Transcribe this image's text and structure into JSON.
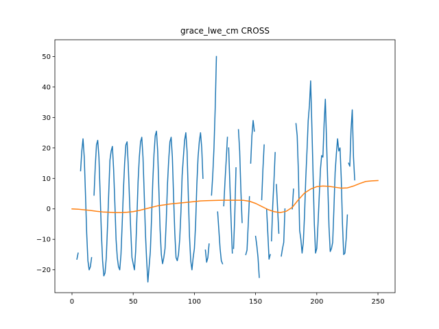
{
  "chart_data": {
    "type": "line",
    "title": "grace_lwe_cm CROSS",
    "xlabel": "",
    "ylabel": "",
    "xlim": [
      -14,
      264
    ],
    "ylim": [
      -27.5,
      55.5
    ],
    "xticks": [
      0,
      50,
      100,
      150,
      200,
      250
    ],
    "yticks": [
      -20,
      -10,
      0,
      10,
      20,
      30,
      40,
      50
    ],
    "grid": false,
    "legend": "none",
    "series": [
      {
        "color": "#1f77b4",
        "segments": [
          [
            [
              4,
              -16.5
            ],
            [
              5,
              -14.5
            ]
          ],
          [
            [
              7,
              12.5
            ],
            [
              8,
              19
            ],
            [
              9,
              23
            ],
            [
              10,
              17
            ],
            [
              11,
              5
            ],
            [
              12,
              -8
            ],
            [
              13,
              -17
            ],
            [
              14,
              -20
            ],
            [
              15,
              -19
            ],
            [
              16,
              -16
            ]
          ],
          [
            [
              18,
              4.5
            ],
            [
              19,
              14
            ],
            [
              20,
              21
            ],
            [
              21,
              22.5
            ],
            [
              22,
              17
            ],
            [
              23,
              5
            ],
            [
              24,
              -8
            ],
            [
              25,
              -17
            ],
            [
              26,
              -22
            ],
            [
              27,
              -21
            ],
            [
              28,
              -16
            ],
            [
              29,
              -6
            ],
            [
              30,
              5
            ],
            [
              31,
              16
            ],
            [
              32,
              19
            ],
            [
              33,
              20.5
            ],
            [
              34,
              13
            ],
            [
              35,
              2
            ],
            [
              36,
              -10
            ],
            [
              37,
              -16
            ],
            [
              38,
              -19
            ],
            [
              39,
              -20
            ],
            [
              40,
              -15
            ],
            [
              41,
              -5
            ],
            [
              42,
              6
            ],
            [
              43,
              15
            ],
            [
              44,
              21
            ],
            [
              45,
              22
            ],
            [
              46,
              14
            ],
            [
              47,
              3
            ],
            [
              48,
              -7
            ],
            [
              49,
              -16
            ],
            [
              50,
              -18
            ],
            [
              51,
              -20
            ],
            [
              52,
              -14
            ],
            [
              53,
              -3
            ],
            [
              54,
              9
            ],
            [
              55,
              17
            ],
            [
              56,
              22
            ],
            [
              57,
              23.5
            ],
            [
              58,
              17
            ],
            [
              59,
              5
            ],
            [
              60,
              -8
            ],
            [
              61,
              -17
            ],
            [
              62,
              -24
            ],
            [
              63,
              -19
            ],
            [
              64,
              -14
            ],
            [
              65,
              -3
            ],
            [
              66,
              9
            ],
            [
              67,
              18
            ],
            [
              68,
              24
            ],
            [
              69,
              25.5
            ],
            [
              70,
              19
            ],
            [
              71,
              6
            ],
            [
              72,
              -7
            ],
            [
              73,
              -15
            ],
            [
              74,
              -18
            ],
            [
              75,
              -16
            ],
            [
              76,
              -13
            ],
            [
              77,
              -4
            ],
            [
              78,
              8
            ],
            [
              79,
              16
            ],
            [
              80,
              22
            ],
            [
              81,
              23.5
            ],
            [
              82,
              17
            ],
            [
              83,
              4
            ],
            [
              84,
              -8
            ],
            [
              85,
              -16
            ],
            [
              86,
              -17
            ],
            [
              87,
              -15
            ],
            [
              88,
              -10
            ],
            [
              89,
              -1
            ],
            [
              90,
              11
            ],
            [
              91,
              17
            ],
            [
              92,
              22.5
            ],
            [
              93,
              25
            ],
            [
              94,
              19
            ],
            [
              95,
              5
            ],
            [
              96,
              -9
            ],
            [
              97,
              -17
            ],
            [
              98,
              -20
            ],
            [
              99,
              -16
            ],
            [
              100,
              -13
            ],
            [
              101,
              -5
            ],
            [
              102,
              8
            ],
            [
              103,
              17
            ],
            [
              104,
              22
            ],
            [
              105,
              25
            ],
            [
              106,
              20
            ],
            [
              107,
              10
            ]
          ],
          [
            [
              109,
              -13.5
            ],
            [
              110,
              -17.5
            ],
            [
              111,
              -16
            ],
            [
              112,
              -11.5
            ]
          ],
          [
            [
              114,
              4.5
            ],
            [
              115,
              11
            ],
            [
              116,
              20
            ],
            [
              117,
              33
            ],
            [
              118,
              50
            ]
          ],
          [
            [
              119,
              -1
            ],
            [
              120,
              -7
            ],
            [
              121,
              -13
            ],
            [
              122,
              -17
            ],
            [
              123,
              -18
            ]
          ],
          [
            [
              124,
              1
            ],
            [
              125,
              9
            ],
            [
              126,
              16
            ],
            [
              127,
              23.5
            ]
          ],
          [
            [
              128,
              20
            ],
            [
              129,
              8
            ],
            [
              130,
              -4
            ],
            [
              131,
              -14.5
            ]
          ],
          [
            [
              132,
              -13
            ],
            [
              133,
              -2
            ],
            [
              134,
              13.5
            ]
          ],
          [
            [
              136,
              26
            ],
            [
              137,
              19
            ],
            [
              138,
              6
            ],
            [
              139,
              -4.5
            ]
          ],
          [
            [
              142,
              -15
            ],
            [
              143,
              -13.5
            ],
            [
              144,
              -5
            ],
            [
              145,
              4
            ]
          ],
          [
            [
              146,
              15
            ],
            [
              147,
              24
            ],
            [
              148,
              29
            ],
            [
              149,
              25.5
            ]
          ],
          [
            [
              150,
              -9
            ],
            [
              151,
              -12
            ],
            [
              152,
              -16
            ],
            [
              153,
              -22.5
            ]
          ],
          [
            [
              155,
              3
            ],
            [
              156,
              13
            ],
            [
              157,
              21
            ]
          ],
          [
            [
              159,
              0
            ],
            [
              160,
              -8
            ],
            [
              161,
              -16.5
            ],
            [
              162,
              -15
            ]
          ],
          [
            [
              163,
              -10.5
            ],
            [
              164,
              1
            ],
            [
              165,
              9
            ],
            [
              166,
              18.5
            ]
          ],
          [
            [
              167,
              8
            ],
            [
              168,
              0
            ],
            [
              169,
              -8
            ]
          ],
          [
            [
              171,
              -15.5
            ],
            [
              172,
              -13
            ],
            [
              173,
              -11
            ],
            [
              174,
              0
            ]
          ],
          [
            [
              180,
              0
            ],
            [
              181,
              6.5
            ]
          ],
          [
            [
              183,
              28
            ],
            [
              184,
              24
            ],
            [
              185,
              12
            ],
            [
              186,
              -7
            ],
            [
              187,
              -10
            ],
            [
              188,
              -14.5
            ],
            [
              189,
              -11
            ],
            [
              190,
              -2
            ],
            [
              191,
              10
            ],
            [
              192,
              19
            ],
            [
              193,
              29
            ],
            [
              194,
              34
            ],
            [
              195,
              42
            ],
            [
              196,
              27
            ],
            [
              197,
              11
            ],
            [
              198,
              -5
            ],
            [
              199,
              -14.5
            ],
            [
              200,
              -13
            ],
            [
              201,
              -5
            ],
            [
              202,
              4
            ],
            [
              203,
              13
            ],
            [
              204,
              17.5
            ],
            [
              205,
              17
            ],
            [
              206,
              28
            ],
            [
              207,
              36
            ],
            [
              208,
              22
            ],
            [
              209,
              8
            ],
            [
              210,
              -6
            ],
            [
              211,
              -14
            ],
            [
              212,
              -13
            ],
            [
              213,
              -11
            ],
            [
              214,
              0
            ],
            [
              215,
              12
            ],
            [
              216,
              18
            ],
            [
              217,
              23
            ],
            [
              218,
              19
            ],
            [
              219,
              20
            ],
            [
              220,
              10
            ],
            [
              221,
              -5
            ],
            [
              222,
              -15
            ],
            [
              223,
              -14.5
            ],
            [
              224,
              -10
            ],
            [
              225,
              -2
            ]
          ],
          [
            [
              226,
              15
            ],
            [
              227,
              14
            ],
            [
              228,
              26
            ],
            [
              229,
              32.5
            ],
            [
              230,
              17
            ],
            [
              231,
              9.5
            ]
          ]
        ]
      },
      {
        "color": "#ff7f0e",
        "points": [
          [
            0,
            0
          ],
          [
            5,
            -0.1
          ],
          [
            10,
            -0.3
          ],
          [
            15,
            -0.5
          ],
          [
            20,
            -0.8
          ],
          [
            25,
            -1
          ],
          [
            30,
            -1.1
          ],
          [
            35,
            -1.2
          ],
          [
            40,
            -1.2
          ],
          [
            45,
            -1.1
          ],
          [
            50,
            -0.9
          ],
          [
            55,
            -0.5
          ],
          [
            60,
            0
          ],
          [
            65,
            0.5
          ],
          [
            70,
            1
          ],
          [
            75,
            1.3
          ],
          [
            80,
            1.6
          ],
          [
            85,
            1.8
          ],
          [
            90,
            2
          ],
          [
            95,
            2.2
          ],
          [
            100,
            2.4
          ],
          [
            105,
            2.6
          ],
          [
            110,
            2.7
          ],
          [
            115,
            2.75
          ],
          [
            120,
            2.8
          ],
          [
            125,
            2.85
          ],
          [
            130,
            2.85
          ],
          [
            135,
            2.85
          ],
          [
            140,
            2.8
          ],
          [
            145,
            2.5
          ],
          [
            150,
            1.8
          ],
          [
            155,
            0.8
          ],
          [
            160,
            -0.2
          ],
          [
            165,
            -0.9
          ],
          [
            170,
            -1.2
          ],
          [
            175,
            -0.8
          ],
          [
            180,
            0.5
          ],
          [
            185,
            3
          ],
          [
            190,
            5.2
          ],
          [
            195,
            6.5
          ],
          [
            200,
            7.3
          ],
          [
            205,
            7.5
          ],
          [
            210,
            7.4
          ],
          [
            215,
            7.1
          ],
          [
            220,
            6.8
          ],
          [
            225,
            6.9
          ],
          [
            230,
            7.5
          ],
          [
            235,
            8.3
          ],
          [
            240,
            9
          ],
          [
            245,
            9.2
          ],
          [
            250,
            9.3
          ]
        ]
      }
    ]
  }
}
